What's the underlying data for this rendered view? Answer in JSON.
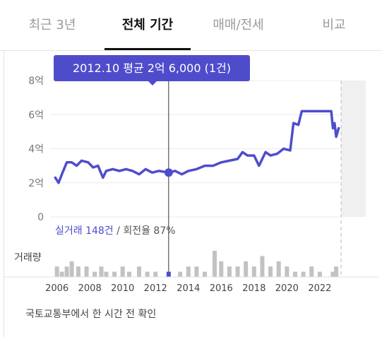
{
  "tabs": [
    {
      "label": "최근 3년",
      "active": false
    },
    {
      "label": "전체 기간",
      "active": true
    },
    {
      "label": "매매/전세",
      "active": false
    },
    {
      "label": "비교",
      "active": false
    }
  ],
  "tooltip": {
    "text": "2012.10 평균 2억 6,000 (1건)"
  },
  "deal_summary": {
    "count_text": "실거래 148건",
    "separator": " / ",
    "turnover_text": "회전율 87%"
  },
  "footer": {
    "text": "국토교통부에서 한 시간 전 확인"
  },
  "colors": {
    "accent": "#4f4ccc",
    "volume_bar": "#c2c2c2",
    "future_zone": "#f0f0f0"
  },
  "chart_data": {
    "type": "line",
    "y_unit": "억",
    "ylim": [
      0,
      8
    ],
    "y_ticks": [
      0,
      2,
      4,
      6,
      8
    ],
    "y_tick_labels": [
      "0",
      "2억",
      "4억",
      "6억",
      "8억"
    ],
    "xlim": [
      2005.8,
      2024.8
    ],
    "x_ticks": [
      2006,
      2008,
      2010,
      2012,
      2014,
      2016,
      2018,
      2020,
      2022
    ],
    "x_tick_labels": [
      "2006",
      "2008",
      "2010",
      "2012",
      "2014",
      "2016",
      "2018",
      "2020",
      "2022"
    ],
    "grid": true,
    "future_region_start": 2023.3,
    "selected_point": {
      "x": 2012.8,
      "y": 2.6
    },
    "series": [
      {
        "values": [
          [
            2005.9,
            2.3
          ],
          [
            2006.1,
            2.0
          ],
          [
            2006.3,
            2.5
          ],
          [
            2006.6,
            3.2
          ],
          [
            2006.9,
            3.2
          ],
          [
            2007.2,
            3.0
          ],
          [
            2007.5,
            3.3
          ],
          [
            2007.9,
            3.2
          ],
          [
            2008.2,
            2.9
          ],
          [
            2008.5,
            3.0
          ],
          [
            2008.8,
            2.3
          ],
          [
            2009.0,
            2.7
          ],
          [
            2009.4,
            2.8
          ],
          [
            2009.8,
            2.7
          ],
          [
            2010.2,
            2.8
          ],
          [
            2010.6,
            2.7
          ],
          [
            2011.0,
            2.5
          ],
          [
            2011.4,
            2.8
          ],
          [
            2011.8,
            2.6
          ],
          [
            2012.2,
            2.7
          ],
          [
            2012.8,
            2.6
          ],
          [
            2013.2,
            2.7
          ],
          [
            2013.6,
            2.5
          ],
          [
            2014.0,
            2.7
          ],
          [
            2014.5,
            2.8
          ],
          [
            2015.0,
            3.0
          ],
          [
            2015.5,
            3.0
          ],
          [
            2016.0,
            3.2
          ],
          [
            2016.5,
            3.3
          ],
          [
            2017.0,
            3.4
          ],
          [
            2017.3,
            3.8
          ],
          [
            2017.6,
            3.6
          ],
          [
            2018.0,
            3.6
          ],
          [
            2018.3,
            3.0
          ],
          [
            2018.7,
            3.8
          ],
          [
            2019.0,
            3.6
          ],
          [
            2019.4,
            3.7
          ],
          [
            2019.8,
            4.0
          ],
          [
            2020.2,
            3.9
          ],
          [
            2020.4,
            5.5
          ],
          [
            2020.7,
            5.4
          ],
          [
            2020.9,
            6.2
          ],
          [
            2021.4,
            6.2
          ],
          [
            2022.0,
            6.2
          ],
          [
            2022.4,
            6.2
          ],
          [
            2022.7,
            6.2
          ],
          [
            2022.8,
            5.2
          ],
          [
            2022.9,
            5.5
          ],
          [
            2023.0,
            4.7
          ],
          [
            2023.15,
            5.2
          ]
        ]
      }
    ],
    "volume_label": "거래량",
    "volume": [
      [
        2006.0,
        2
      ],
      [
        2006.3,
        1
      ],
      [
        2006.6,
        2
      ],
      [
        2006.9,
        3
      ],
      [
        2007.3,
        2
      ],
      [
        2007.8,
        2
      ],
      [
        2008.3,
        1
      ],
      [
        2008.7,
        2
      ],
      [
        2009.0,
        1
      ],
      [
        2009.5,
        1
      ],
      [
        2010.0,
        2
      ],
      [
        2010.4,
        1
      ],
      [
        2011.0,
        2
      ],
      [
        2011.5,
        1
      ],
      [
        2012.0,
        1
      ],
      [
        2012.8,
        1
      ],
      [
        2013.5,
        1
      ],
      [
        2014.0,
        2
      ],
      [
        2014.5,
        2
      ],
      [
        2015.0,
        1
      ],
      [
        2015.6,
        5
      ],
      [
        2016.0,
        3
      ],
      [
        2016.5,
        2
      ],
      [
        2017.0,
        2
      ],
      [
        2017.5,
        3
      ],
      [
        2018.0,
        2
      ],
      [
        2018.5,
        4
      ],
      [
        2019.0,
        2
      ],
      [
        2019.5,
        3
      ],
      [
        2020.0,
        2
      ],
      [
        2020.5,
        1
      ],
      [
        2021.0,
        1
      ],
      [
        2021.5,
        2
      ],
      [
        2022.0,
        1
      ],
      [
        2022.8,
        1
      ],
      [
        2023.0,
        2
      ]
    ]
  }
}
